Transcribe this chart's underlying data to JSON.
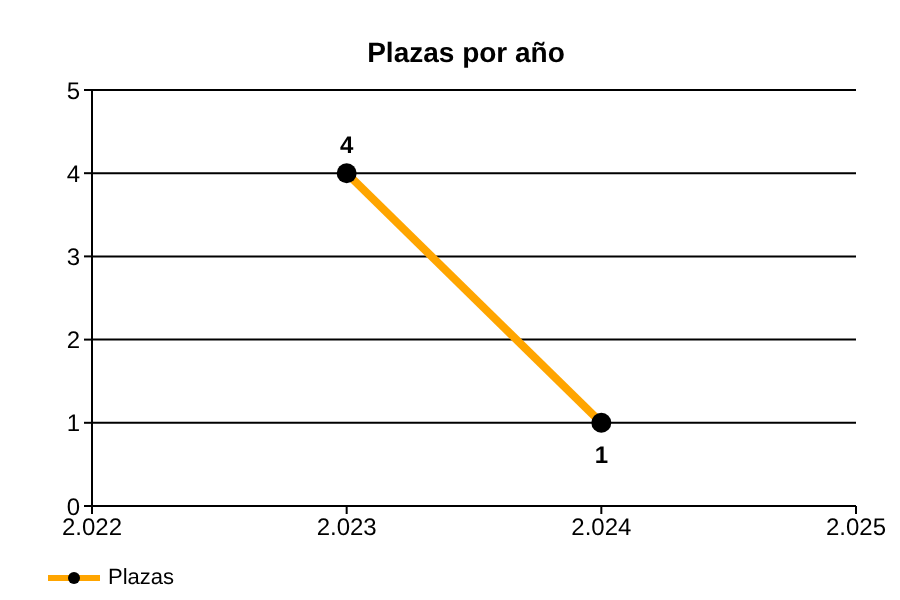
{
  "chart_data": {
    "type": "line",
    "title": "Plazas por año",
    "x": [
      2023,
      2024
    ],
    "series": [
      {
        "name": "Plazas",
        "color": "#ffa500",
        "values": [
          4,
          1
        ]
      }
    ],
    "xlim": [
      2022,
      2025
    ],
    "xticks": [
      {
        "value": 2022,
        "label": "2.022"
      },
      {
        "value": 2023,
        "label": "2.023"
      },
      {
        "value": 2024,
        "label": "2.024"
      },
      {
        "value": 2025,
        "label": "2.025"
      }
    ],
    "ylim": [
      0,
      5
    ],
    "yticks": [
      0,
      1,
      2,
      3,
      4,
      5
    ],
    "grid": "y",
    "legend": "bottom left",
    "marker": "circle",
    "line_style": "solid",
    "data_labels": true
  }
}
